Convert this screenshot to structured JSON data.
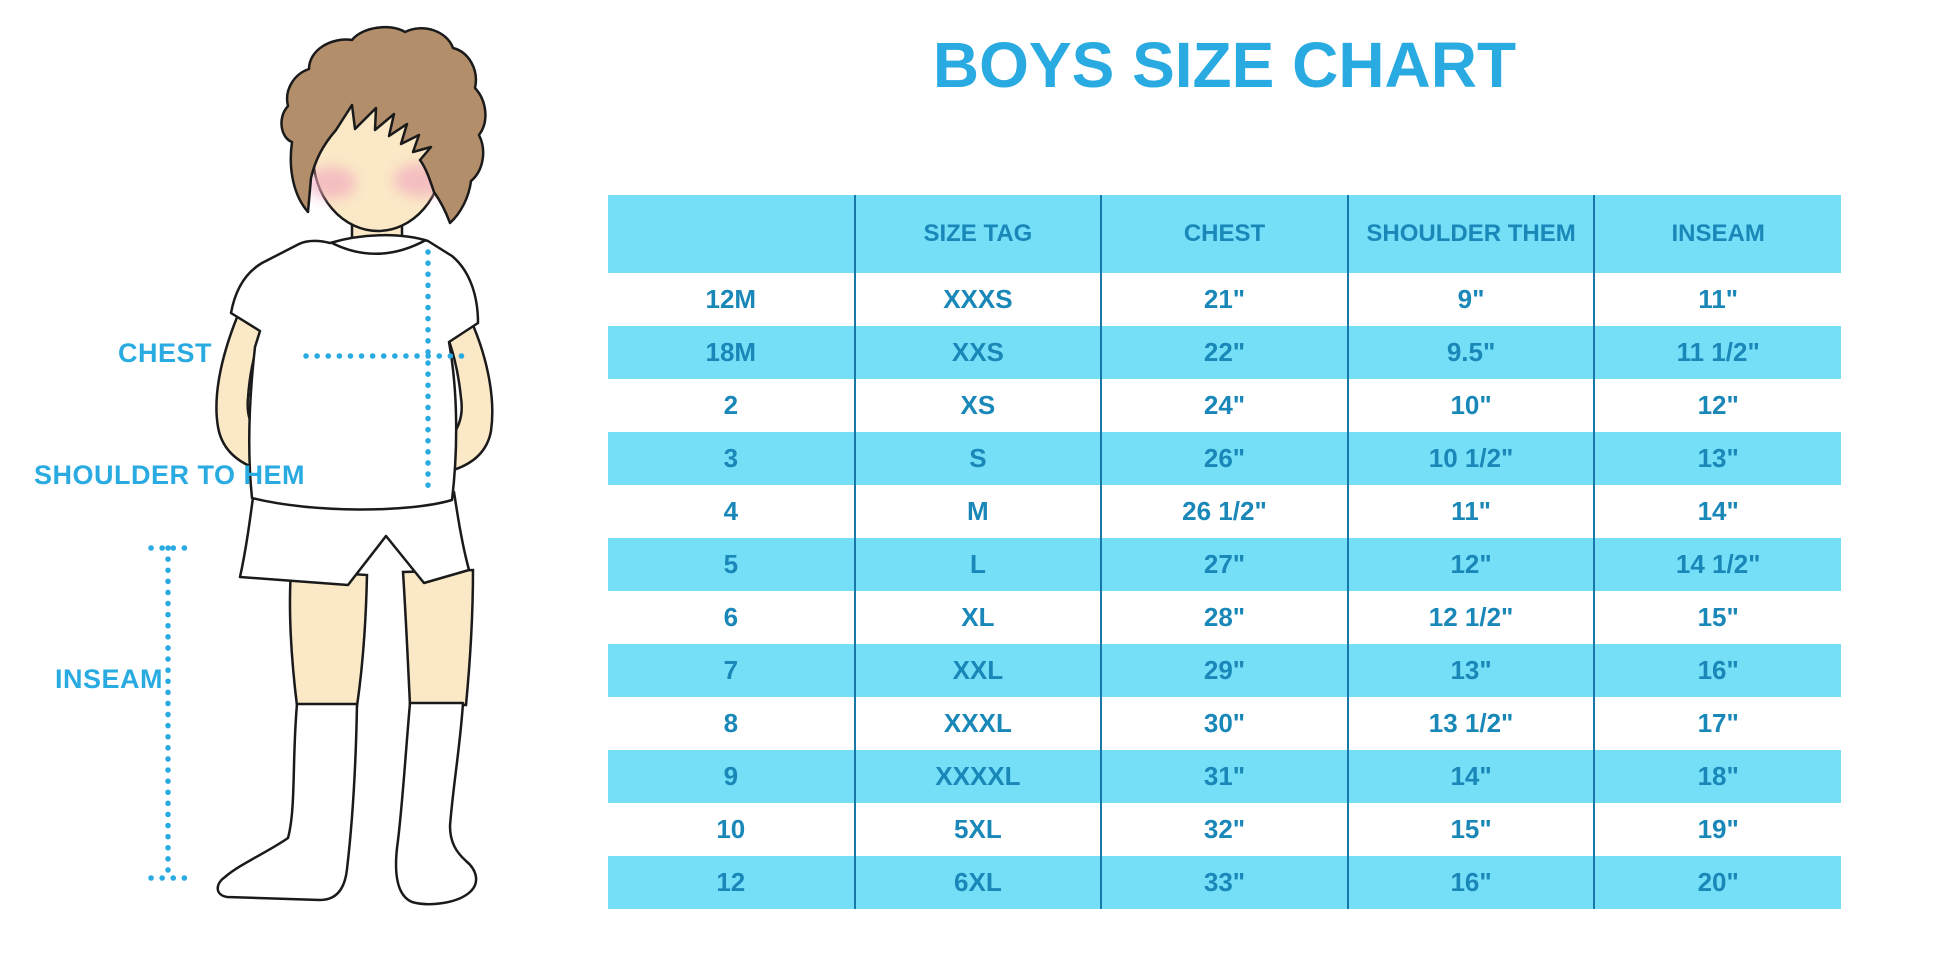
{
  "title": "BOYS SIZE CHART",
  "diagram_labels": {
    "chest": "CHEST",
    "shoulder_to_hem": "SHOULDER TO HEM",
    "inseam": "INSEAM"
  },
  "chart_data": {
    "type": "table",
    "title": "BOYS SIZE CHART",
    "headers": [
      "",
      "SIZE TAG",
      "CHEST",
      "SHOULDER THEM",
      "INSEAM"
    ],
    "rows": [
      [
        "12M",
        "XXXS",
        "21\"",
        "9\"",
        "11\""
      ],
      [
        "18M",
        "XXS",
        "22\"",
        "9.5\"",
        "11 1/2\""
      ],
      [
        "2",
        "XS",
        "24\"",
        "10\"",
        "12\""
      ],
      [
        "3",
        "S",
        "26\"",
        "10 1/2\"",
        "13\""
      ],
      [
        "4",
        "M",
        "26 1/2\"",
        "11\"",
        "14\""
      ],
      [
        "5",
        "L",
        "27\"",
        "12\"",
        "14 1/2\""
      ],
      [
        "6",
        "XL",
        "28\"",
        "12 1/2\"",
        "15\""
      ],
      [
        "7",
        "XXL",
        "29\"",
        "13\"",
        "16\""
      ],
      [
        "8",
        "XXXL",
        "30\"",
        "13 1/2\"",
        "17\""
      ],
      [
        "9",
        "XXXXL",
        "31\"",
        "14\"",
        "18\""
      ],
      [
        "10",
        "5XL",
        "32\"",
        "15\"",
        "19\""
      ],
      [
        "12",
        "6XL",
        "33\"",
        "16\"",
        "20\""
      ]
    ],
    "layout": {
      "row_striping": "alternating white / light blue",
      "legend": "none",
      "grid": "vertical dividers only"
    }
  },
  "colors": {
    "accent_blue": "#29ABE2",
    "row_stripe_blue": "#76DFF8",
    "table_text_blue": "#1987B8",
    "divider_blue": "#1878A8",
    "hair_brown": "#B28E6B",
    "skin": "#FAE8C6",
    "cheek_pink": "#F2A9BE"
  }
}
